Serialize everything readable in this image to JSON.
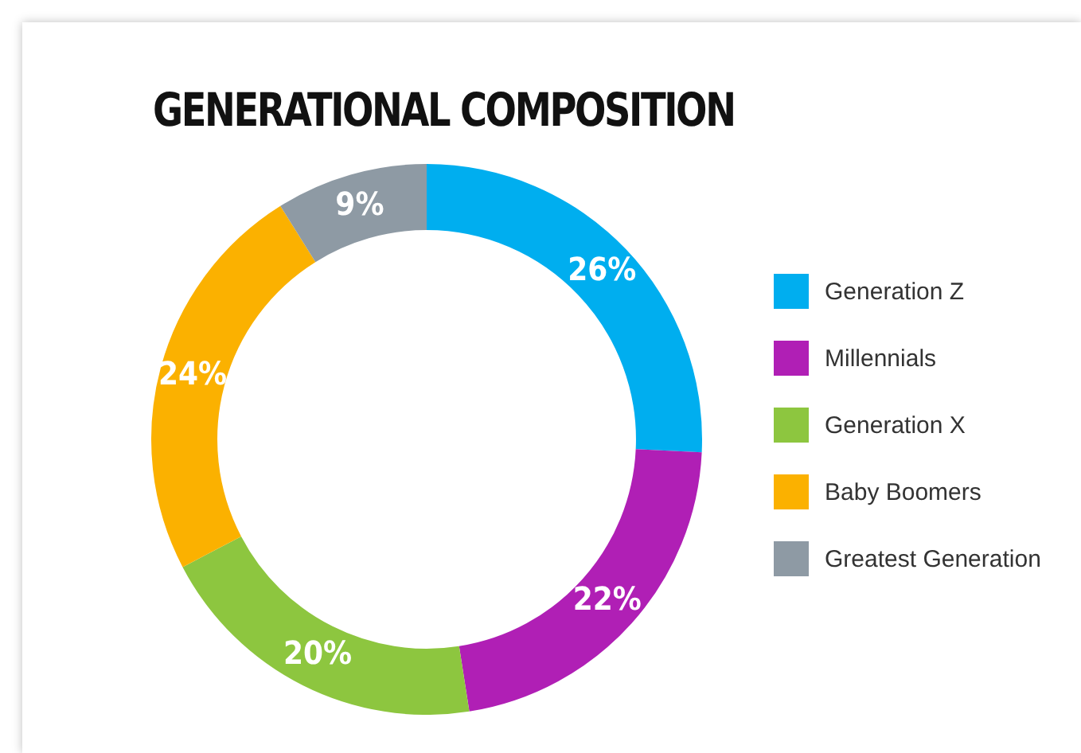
{
  "chart_data": {
    "type": "donut",
    "title": "GENERATIONAL COMPOSITION",
    "categories": [
      "Generation Z",
      "Millennials",
      "Generation X",
      "Baby Boomers",
      "Greatest Generation"
    ],
    "values": [
      26,
      22,
      20,
      24,
      9
    ],
    "value_labels": [
      "26%",
      "22%",
      "20%",
      "24%",
      "9%"
    ],
    "colors": [
      "#00aeef",
      "#b01fb5",
      "#8dc63f",
      "#fbb100",
      "#8e9aa4"
    ],
    "legend": "right"
  }
}
